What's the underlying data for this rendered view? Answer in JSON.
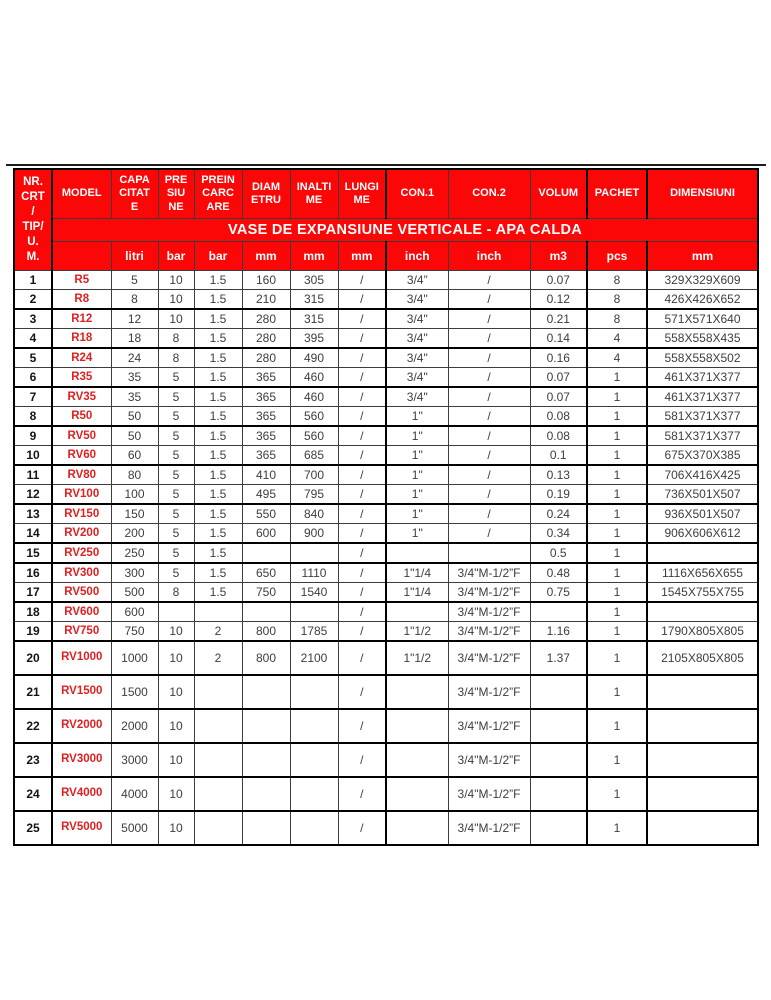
{
  "title_banner": "VASE DE EXPANSIUNE VERTICALE - APA CALDA",
  "corner_header": "NR.\nCRT\n/\nTIP/\nU.\nM.",
  "columns": [
    {
      "key": "model",
      "label": "MODEL",
      "unit": ""
    },
    {
      "key": "cap",
      "label": "CAPA\nCITAT\nE",
      "unit": "litri"
    },
    {
      "key": "pres",
      "label": "PRE\nSIU\nNE",
      "unit": "bar"
    },
    {
      "key": "prein",
      "label": "PREIN\nCARC\nARE",
      "unit": "bar"
    },
    {
      "key": "diam",
      "label": "DIAM\nETRU",
      "unit": "mm"
    },
    {
      "key": "inalt",
      "label": "INALTI\nME",
      "unit": "mm"
    },
    {
      "key": "lung",
      "label": "LUNGI\nME",
      "unit": "mm"
    },
    {
      "key": "con1",
      "label": "CON.1",
      "unit": "inch"
    },
    {
      "key": "con2",
      "label": "CON.2",
      "unit": "inch"
    },
    {
      "key": "volum",
      "label": "VOLUM",
      "unit": "m3"
    },
    {
      "key": "pachet",
      "label": "PACHET",
      "unit": "pcs"
    },
    {
      "key": "dim",
      "label": "DIMENSIUNI",
      "unit": "mm"
    }
  ],
  "rows": [
    {
      "nr": "1",
      "model": "R5",
      "cap": "5",
      "pres": "10",
      "prein": "1.5",
      "diam": "160",
      "inalt": "305",
      "lung": "/",
      "con1": "3/4”",
      "con2": "/",
      "volum": "0.07",
      "pachet": "8",
      "dim": "329X329X609"
    },
    {
      "nr": "2",
      "model": "R8",
      "cap": "8",
      "pres": "10",
      "prein": "1.5",
      "diam": "210",
      "inalt": "315",
      "lung": "/",
      "con1": "3/4\"",
      "con2": "/",
      "volum": "0.12",
      "pachet": "8",
      "dim": "426X426X652"
    },
    {
      "nr": "3",
      "model": "R12",
      "cap": "12",
      "pres": "10",
      "prein": "1.5",
      "diam": "280",
      "inalt": "315",
      "lung": "/",
      "con1": "3/4\"",
      "con2": "/",
      "volum": "0.21",
      "pachet": "8",
      "dim": "571X571X640"
    },
    {
      "nr": "4",
      "model": "R18",
      "cap": "18",
      "pres": "8",
      "prein": "1.5",
      "diam": "280",
      "inalt": "395",
      "lung": "/",
      "con1": "3/4\"",
      "con2": "/",
      "volum": "0.14",
      "pachet": "4",
      "dim": "558X558X435"
    },
    {
      "nr": "5",
      "model": "R24",
      "cap": "24",
      "pres": "8",
      "prein": "1.5",
      "diam": "280",
      "inalt": "490",
      "lung": "/",
      "con1": "3/4\"",
      "con2": "/",
      "volum": "0.16",
      "pachet": "4",
      "dim": "558X558X502"
    },
    {
      "nr": "6",
      "model": "R35",
      "cap": "35",
      "pres": "5",
      "prein": "1.5",
      "diam": "365",
      "inalt": "460",
      "lung": "/",
      "con1": "3/4\"",
      "con2": "/",
      "volum": "0.07",
      "pachet": "1",
      "dim": "461X371X377"
    },
    {
      "nr": "7",
      "model": "RV35",
      "cap": "35",
      "pres": "5",
      "prein": "1.5",
      "diam": "365",
      "inalt": "460",
      "lung": "/",
      "con1": "3/4\"",
      "con2": "/",
      "volum": "0.07",
      "pachet": "1",
      "dim": "461X371X377"
    },
    {
      "nr": "8",
      "model": "R50",
      "cap": "50",
      "pres": "5",
      "prein": "1.5",
      "diam": "365",
      "inalt": "560",
      "lung": "/",
      "con1": "1\"",
      "con2": "/",
      "volum": "0.08",
      "pachet": "1",
      "dim": "581X371X377"
    },
    {
      "nr": "9",
      "model": "RV50",
      "cap": "50",
      "pres": "5",
      "prein": "1.5",
      "diam": "365",
      "inalt": "560",
      "lung": "/",
      "con1": "1\"",
      "con2": "/",
      "volum": "0.08",
      "pachet": "1",
      "dim": "581X371X377"
    },
    {
      "nr": "10",
      "model": "RV60",
      "cap": "60",
      "pres": "5",
      "prein": "1.5",
      "diam": "365",
      "inalt": "685",
      "lung": "/",
      "con1": "1\"",
      "con2": "/",
      "volum": "0.1",
      "pachet": "1",
      "dim": "675X370X385"
    },
    {
      "nr": "11",
      "model": "RV80",
      "cap": "80",
      "pres": "5",
      "prein": "1.5",
      "diam": "410",
      "inalt": "700",
      "lung": "/",
      "con1": "1\"",
      "con2": "/",
      "volum": "0.13",
      "pachet": "1",
      "dim": "706X416X425"
    },
    {
      "nr": "12",
      "model": "RV100",
      "cap": "100",
      "pres": "5",
      "prein": "1.5",
      "diam": "495",
      "inalt": "795",
      "lung": "/",
      "con1": "1\"",
      "con2": "/",
      "volum": "0.19",
      "pachet": "1",
      "dim": "736X501X507"
    },
    {
      "nr": "13",
      "model": "RV150",
      "cap": "150",
      "pres": "5",
      "prein": "1.5",
      "diam": "550",
      "inalt": "840",
      "lung": "/",
      "con1": "1\"",
      "con2": "/",
      "volum": "0.24",
      "pachet": "1",
      "dim": "936X501X507"
    },
    {
      "nr": "14",
      "model": "RV200",
      "cap": "200",
      "pres": "5",
      "prein": "1.5",
      "diam": "600",
      "inalt": "900",
      "lung": "/",
      "con1": "1\"",
      "con2": "/",
      "volum": "0.34",
      "pachet": "1",
      "dim": "906X606X612"
    },
    {
      "nr": "15",
      "model": "RV250",
      "cap": "250",
      "pres": "5",
      "prein": "1.5",
      "diam": "",
      "inalt": "",
      "lung": "/",
      "con1": "",
      "con2": "",
      "volum": "0.5",
      "pachet": "1",
      "dim": ""
    },
    {
      "nr": "16",
      "model": "RV300",
      "cap": "300",
      "pres": "5",
      "prein": "1.5",
      "diam": "650",
      "inalt": "1110",
      "lung": "/",
      "con1": "1\"1/4",
      "con2": "3/4\"M-1/2”F",
      "volum": "0.48",
      "pachet": "1",
      "dim": "1116X656X655"
    },
    {
      "nr": "17",
      "model": "RV500",
      "cap": "500",
      "pres": "8",
      "prein": "1.5",
      "diam": "750",
      "inalt": "1540",
      "lung": "/",
      "con1": "1\"1/4",
      "con2": "3/4\"M-1/2”F",
      "volum": "0.75",
      "pachet": "1",
      "dim": "1545X755X755"
    },
    {
      "nr": "18",
      "model": "RV600",
      "cap": "600",
      "pres": "",
      "prein": "",
      "diam": "",
      "inalt": "",
      "lung": "/",
      "con1": "",
      "con2": "3/4\"M-1/2”F",
      "volum": "",
      "pachet": "1",
      "dim": ""
    },
    {
      "nr": "19",
      "model": "RV750",
      "cap": "750",
      "pres": "10",
      "prein": "2",
      "diam": "800",
      "inalt": "1785",
      "lung": "/",
      "con1": "1\"1/2",
      "con2": "3/4\"M-1/2”F",
      "volum": "1.16",
      "pachet": "1",
      "dim": "1790X805X805"
    },
    {
      "nr": "20",
      "model": "RV1000",
      "cap": "1000",
      "pres": "10",
      "prein": "2",
      "diam": "800",
      "inalt": "2100",
      "lung": "/",
      "con1": "1\"1/2",
      "con2": "3/4\"M-1/2”F",
      "volum": "1.37",
      "pachet": "1",
      "dim": "2105X805X805"
    },
    {
      "nr": "21",
      "model": "RV1500",
      "cap": "1500",
      "pres": "10",
      "prein": "",
      "diam": "",
      "inalt": "",
      "lung": "/",
      "con1": "",
      "con2": "3/4\"M-1/2”F",
      "volum": "",
      "pachet": "1",
      "dim": ""
    },
    {
      "nr": "22",
      "model": "RV2000",
      "cap": "2000",
      "pres": "10",
      "prein": "",
      "diam": "",
      "inalt": "",
      "lung": "/",
      "con1": "",
      "con2": "3/4\"M-1/2”F",
      "volum": "",
      "pachet": "1",
      "dim": ""
    },
    {
      "nr": "23",
      "model": "RV3000",
      "cap": "3000",
      "pres": "10",
      "prein": "",
      "diam": "",
      "inalt": "",
      "lung": "/",
      "con1": "",
      "con2": "3/4\"M-1/2”F",
      "volum": "",
      "pachet": "1",
      "dim": ""
    },
    {
      "nr": "24",
      "model": "RV4000",
      "cap": "4000",
      "pres": "10",
      "prein": "",
      "diam": "",
      "inalt": "",
      "lung": "/",
      "con1": "",
      "con2": "3/4\"M-1/2”F",
      "volum": "",
      "pachet": "1",
      "dim": ""
    },
    {
      "nr": "25",
      "model": "RV5000",
      "cap": "5000",
      "pres": "10",
      "prein": "",
      "diam": "",
      "inalt": "",
      "lung": "/",
      "con1": "",
      "con2": "3/4\"M-1/2”F",
      "volum": "",
      "pachet": "1",
      "dim": ""
    }
  ],
  "colors": {
    "header_red": "#fb0707",
    "model_red": "#e02020",
    "grid_line": "#3c3c3c",
    "thick_line": "#000000",
    "body_text": "#3d3d3d"
  }
}
